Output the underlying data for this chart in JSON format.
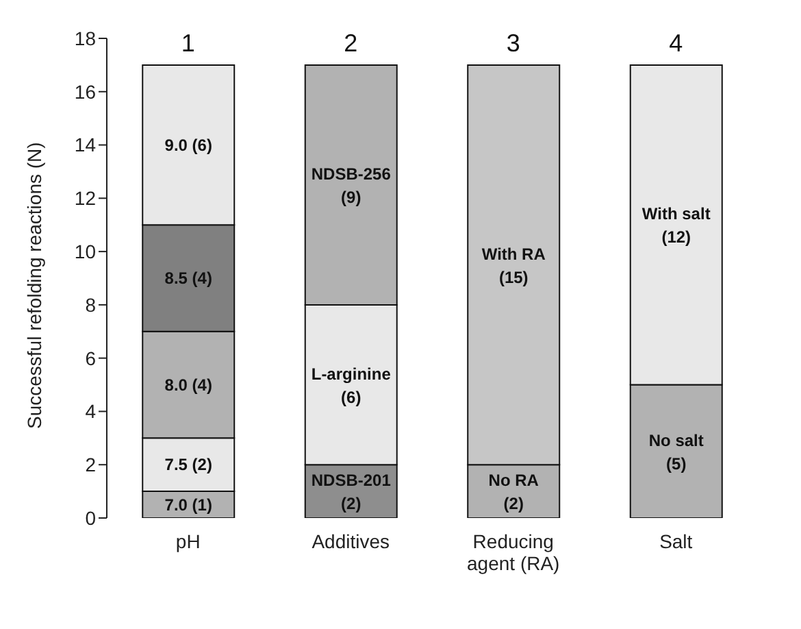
{
  "chart_data": {
    "type": "bar",
    "stacked": true,
    "ylabel": "Successful refolding reactions (N)",
    "categories": [
      "pH",
      "Additives",
      "Reducing agent (RA)",
      "Salt"
    ],
    "ylim": [
      0,
      18
    ],
    "yticks": [
      0,
      2,
      4,
      6,
      8,
      10,
      12,
      14,
      16,
      18
    ],
    "grid": false,
    "series": [
      {
        "colors": [
          "#b2b2b2",
          "#8e8e8e",
          "#b2b2b2",
          "#b2b2b2"
        ],
        "values": [
          1,
          2,
          2,
          5
        ],
        "value_labels": [
          "7.0  (1)",
          "NDSB-201\n(2)",
          "No RA\n(2)",
          "No salt\n(5)"
        ]
      },
      {
        "colors": [
          "#e8e8e8",
          "#e8e8e8",
          "#c6c6c6",
          "#e8e8e8"
        ],
        "values": [
          2,
          6,
          15,
          12
        ],
        "value_labels": [
          "7.5  (2)",
          "L-arginine\n(6)",
          "With RA\n(15)",
          "With salt\n(12)"
        ]
      },
      {
        "colors": [
          "#b2b2b2",
          "#b2b2b2",
          null,
          null
        ],
        "values": [
          4,
          9,
          null,
          null
        ],
        "value_labels": [
          "8.0  (4)",
          "NDSB-256\n(9)",
          null,
          null
        ]
      },
      {
        "colors": [
          "#808080",
          null,
          null,
          null
        ],
        "values": [
          4,
          null,
          null,
          null
        ],
        "value_labels": [
          "8.5  (4)",
          null,
          null,
          null
        ]
      },
      {
        "colors": [
          "#e8e8e8",
          null,
          null,
          null
        ],
        "values": [
          6,
          null,
          null,
          null
        ],
        "value_labels": [
          "9.0  (6)",
          null,
          null,
          null
        ]
      }
    ],
    "annotations": [
      {
        "text": "1",
        "x": "pH",
        "y": 17
      },
      {
        "text": "2",
        "x": "Additives",
        "y": 17
      },
      {
        "text": "3",
        "x": "Reducing agent (RA)",
        "y": 17
      },
      {
        "text": "4",
        "x": "Salt",
        "y": 17
      }
    ]
  }
}
